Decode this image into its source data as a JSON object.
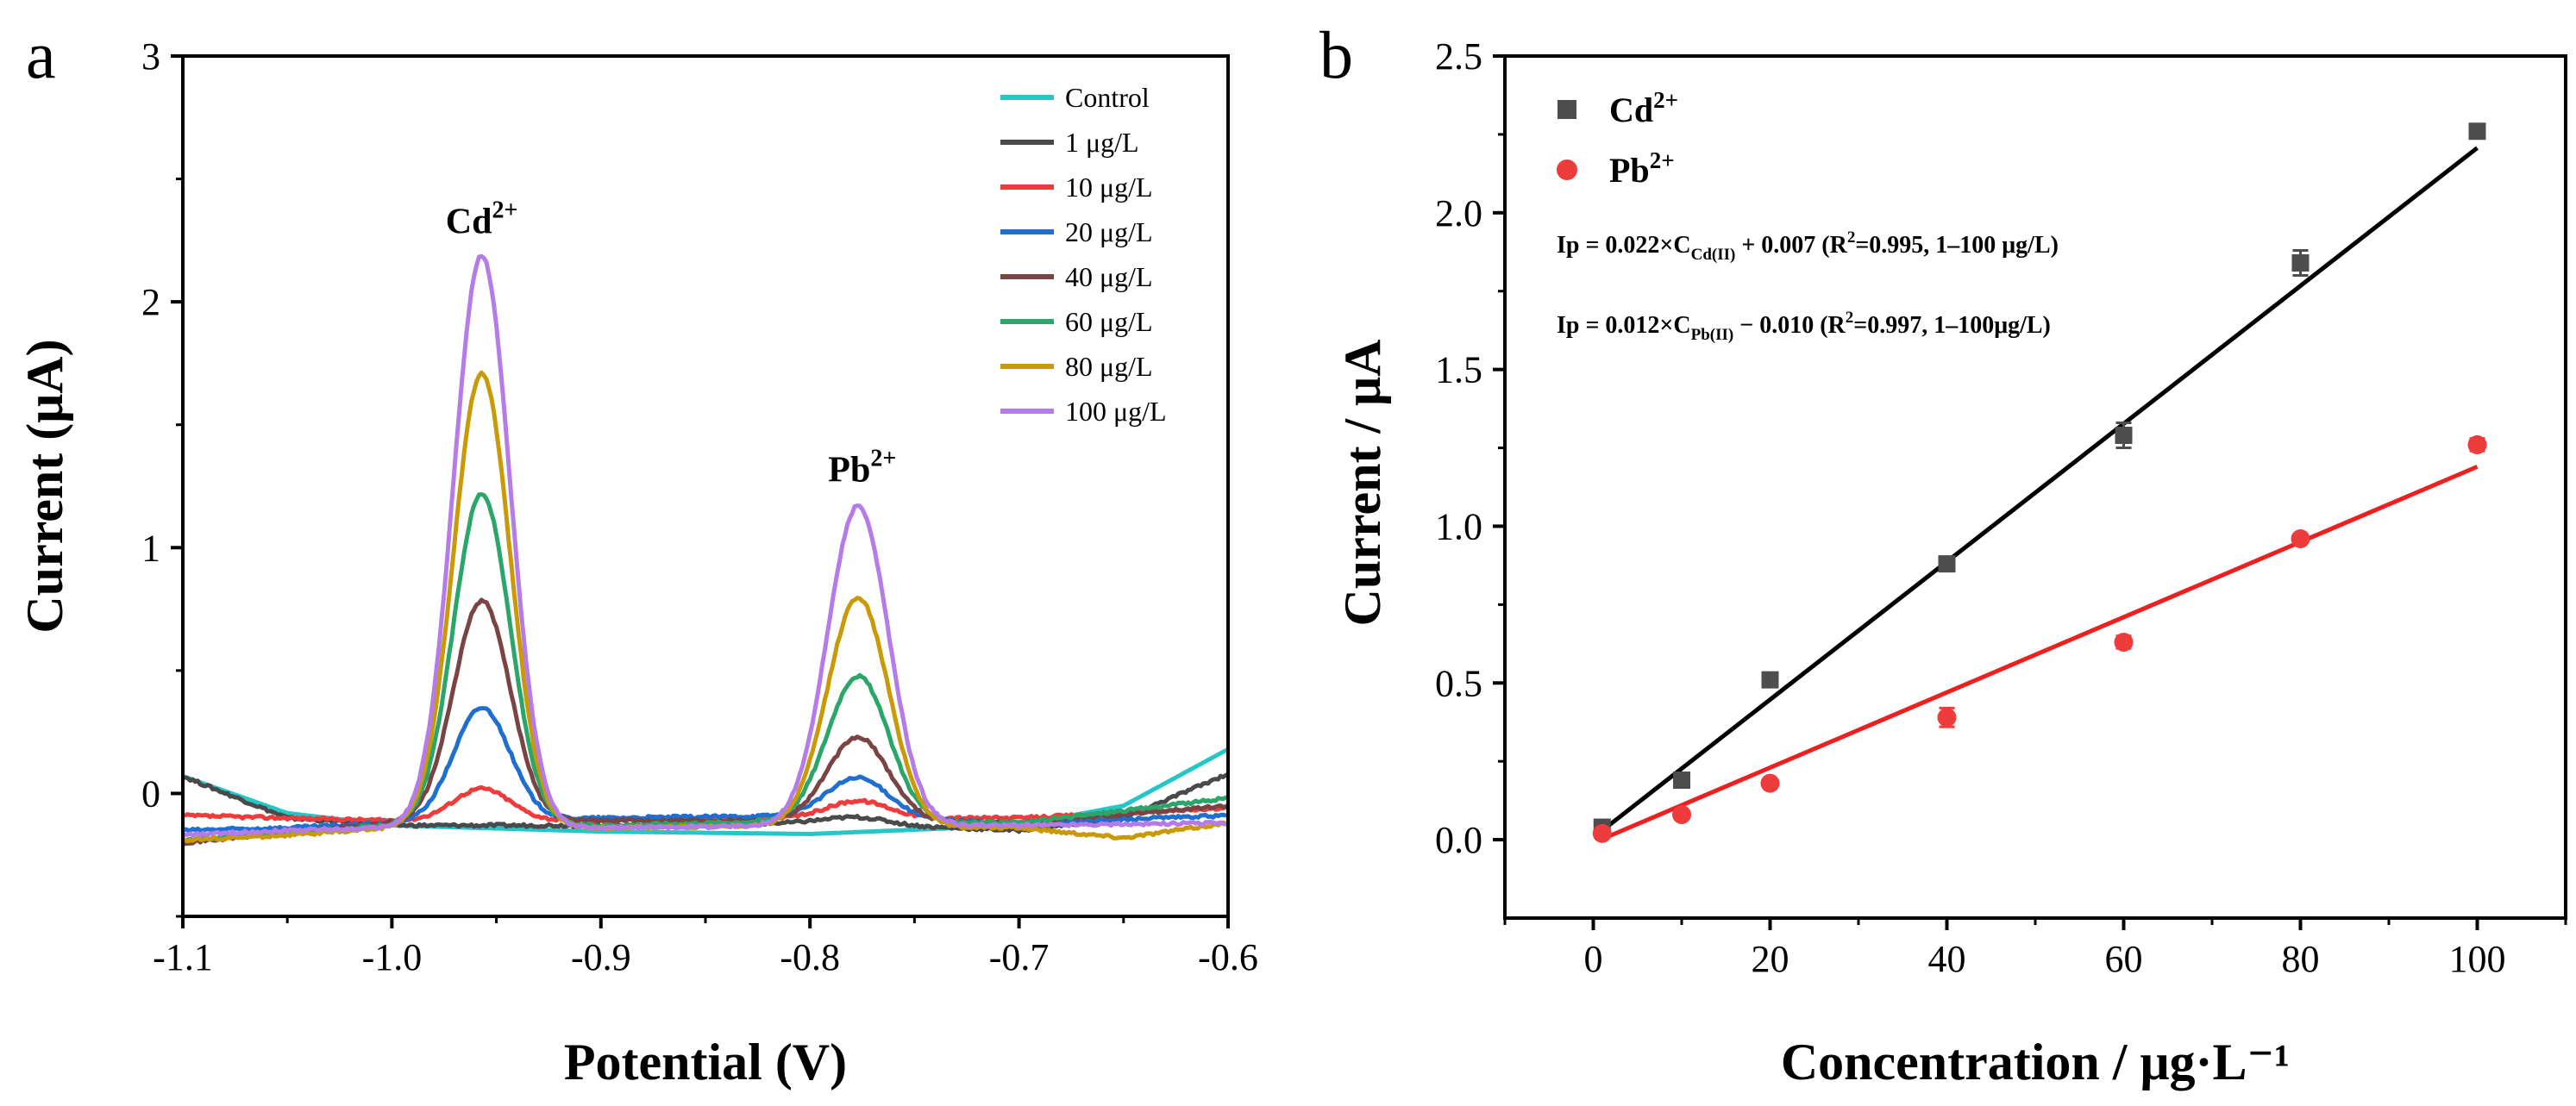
{
  "chart_data": [
    {
      "panel": "a",
      "type": "line",
      "title": "",
      "xlabel": "Potential (V)",
      "ylabel": "Current (μA)",
      "xlim": [
        -1.1,
        -0.6
      ],
      "ylim": [
        -0.5,
        3
      ],
      "xticks": [
        "-1.1",
        "-1.0",
        "-0.9",
        "-0.8",
        "-0.7",
        "-0.6"
      ],
      "yticks": [
        "0",
        "1",
        "2",
        "3"
      ],
      "annotations": [
        {
          "base": "Cd",
          "sup": "2+",
          "x": -0.957,
          "y": 2.28
        },
        {
          "base": "Pb",
          "sup": "2+",
          "x": -0.775,
          "y": 1.27
        }
      ],
      "peak_positions": {
        "cd": -0.957,
        "pb": -0.777
      },
      "peak_widths": {
        "cd": 0.0135,
        "pb": 0.0145
      },
      "series": [
        {
          "name": "Control",
          "color": "#26c6c6",
          "cd_peak": 0.0,
          "pb_peak": 0.0,
          "baseline": [
            [
              -1.1,
              0.07
            ],
            [
              -1.05,
              -0.08
            ],
            [
              -1.0,
              -0.13
            ],
            [
              -0.9,
              -0.155
            ],
            [
              -0.8,
              -0.165
            ],
            [
              -0.7,
              -0.13
            ],
            [
              -0.65,
              -0.05
            ],
            [
              -0.6,
              0.18
            ]
          ]
        },
        {
          "name": "1 μg/L",
          "color": "#4a4a4a",
          "cd_peak": 0.0,
          "pb_peak": 0.03,
          "baseline": [
            [
              -1.1,
              0.07
            ],
            [
              -1.05,
              -0.1
            ],
            [
              -1.0,
              -0.13
            ],
            [
              -0.9,
              -0.13
            ],
            [
              -0.8,
              -0.12
            ],
            [
              -0.7,
              -0.15
            ],
            [
              -0.65,
              -0.1
            ],
            [
              -0.6,
              0.08
            ]
          ]
        },
        {
          "name": "10 μg/L",
          "color": "#ee3b3b",
          "cd_peak": 0.13,
          "pb_peak": 0.07,
          "baseline": [
            [
              -1.1,
              -0.09
            ],
            [
              -1.05,
              -0.1
            ],
            [
              -1.0,
              -0.11
            ],
            [
              -0.9,
              -0.11
            ],
            [
              -0.8,
              -0.1
            ],
            [
              -0.7,
              -0.1
            ],
            [
              -0.6,
              -0.06
            ]
          ]
        },
        {
          "name": "20 μg/L",
          "color": "#1f6fd1",
          "cd_peak": 0.46,
          "pb_peak": 0.16,
          "baseline": [
            [
              -1.1,
              -0.15
            ],
            [
              -1.05,
              -0.14
            ],
            [
              -1.0,
              -0.12
            ],
            [
              -0.9,
              -0.1
            ],
            [
              -0.8,
              -0.09
            ],
            [
              -0.7,
              -0.12
            ],
            [
              -0.6,
              -0.09
            ]
          ]
        },
        {
          "name": "40 μg/L",
          "color": "#7a4444",
          "cd_peak": 0.9,
          "pb_peak": 0.34,
          "baseline": [
            [
              -1.1,
              -0.2
            ],
            [
              -1.05,
              -0.16
            ],
            [
              -1.0,
              -0.12
            ],
            [
              -0.9,
              -0.11
            ],
            [
              -0.8,
              -0.11
            ],
            [
              -0.7,
              -0.12
            ],
            [
              -0.6,
              -0.05
            ]
          ]
        },
        {
          "name": "60 μg/L",
          "color": "#2aa66a",
          "cd_peak": 1.35,
          "pb_peak": 0.59,
          "baseline": [
            [
              -1.1,
              -0.19
            ],
            [
              -1.05,
              -0.16
            ],
            [
              -1.0,
              -0.13
            ],
            [
              -0.9,
              -0.13
            ],
            [
              -0.8,
              -0.11
            ],
            [
              -0.7,
              -0.12
            ],
            [
              -0.6,
              -0.02
            ]
          ]
        },
        {
          "name": "80 μg/L",
          "color": "#c99a06",
          "cd_peak": 1.85,
          "pb_peak": 0.93,
          "baseline": [
            [
              -1.1,
              -0.19
            ],
            [
              -1.05,
              -0.17
            ],
            [
              -1.0,
              -0.14
            ],
            [
              -0.9,
              -0.14
            ],
            [
              -0.8,
              -0.13
            ],
            [
              -0.7,
              -0.14
            ],
            [
              -0.65,
              -0.18
            ],
            [
              -0.6,
              -0.12
            ]
          ]
        },
        {
          "name": "100 μg/L",
          "color": "#b57be8",
          "cd_peak": 2.33,
          "pb_peak": 1.3,
          "baseline": [
            [
              -1.1,
              -0.17
            ],
            [
              -1.05,
              -0.15
            ],
            [
              -1.0,
              -0.14
            ],
            [
              -0.9,
              -0.14
            ],
            [
              -0.8,
              -0.13
            ],
            [
              -0.7,
              -0.13
            ],
            [
              -0.6,
              -0.12
            ]
          ]
        }
      ]
    },
    {
      "panel": "b",
      "type": "scatter",
      "title": "",
      "xlabel": "Concentration / μg·L⁻¹",
      "ylabel": "Current / μA",
      "xlim": [
        -10,
        110
      ],
      "ylim": [
        -0.25,
        2.5
      ],
      "xticks": [
        "0",
        "20",
        "40",
        "60",
        "80",
        "100"
      ],
      "yticks": [
        "0.0",
        "0.5",
        "1.0",
        "1.5",
        "2.0",
        "2.5"
      ],
      "series": [
        {
          "name": "Cd",
          "sup": "2+",
          "marker": "square",
          "color": "#4d4d4d",
          "line_color": "#000000",
          "x": [
            1,
            10,
            20,
            40,
            60,
            80,
            100
          ],
          "y": [
            0.04,
            0.19,
            0.51,
            0.88,
            1.29,
            1.84,
            2.26
          ],
          "err": [
            0.01,
            0.02,
            0.02,
            0.02,
            0.04,
            0.04,
            0.02
          ],
          "fit": {
            "slope": 0.022,
            "intercept": 0.007,
            "x_range": [
              1,
              100
            ]
          }
        },
        {
          "name": "Pb",
          "sup": "2+",
          "marker": "circle",
          "color": "#ee3b3b",
          "line_color": "#ee1f1f",
          "x": [
            1,
            10,
            20,
            40,
            60,
            80,
            100
          ],
          "y": [
            0.02,
            0.08,
            0.18,
            0.39,
            0.63,
            0.96,
            1.26
          ],
          "err": [
            0.01,
            0.01,
            0.01,
            0.03,
            0.02,
            0.01,
            0.02
          ],
          "fit": {
            "slope": 0.012,
            "intercept": -0.01,
            "x_range": [
              1,
              100
            ]
          }
        }
      ],
      "equations": [
        {
          "lead": "Ip = 0.022×C",
          "sub": "Cd(II)",
          "mid": " + 0.007 (R",
          "sup": "2",
          "tail": "=0.995, 1–100 μg/L)"
        },
        {
          "lead": "Ip = 0.012×C",
          "sub": "Pb(II)",
          "mid": " − 0.010 (R",
          "sup": "2",
          "tail": "=0.997, 1–100μg/L)"
        }
      ]
    }
  ]
}
